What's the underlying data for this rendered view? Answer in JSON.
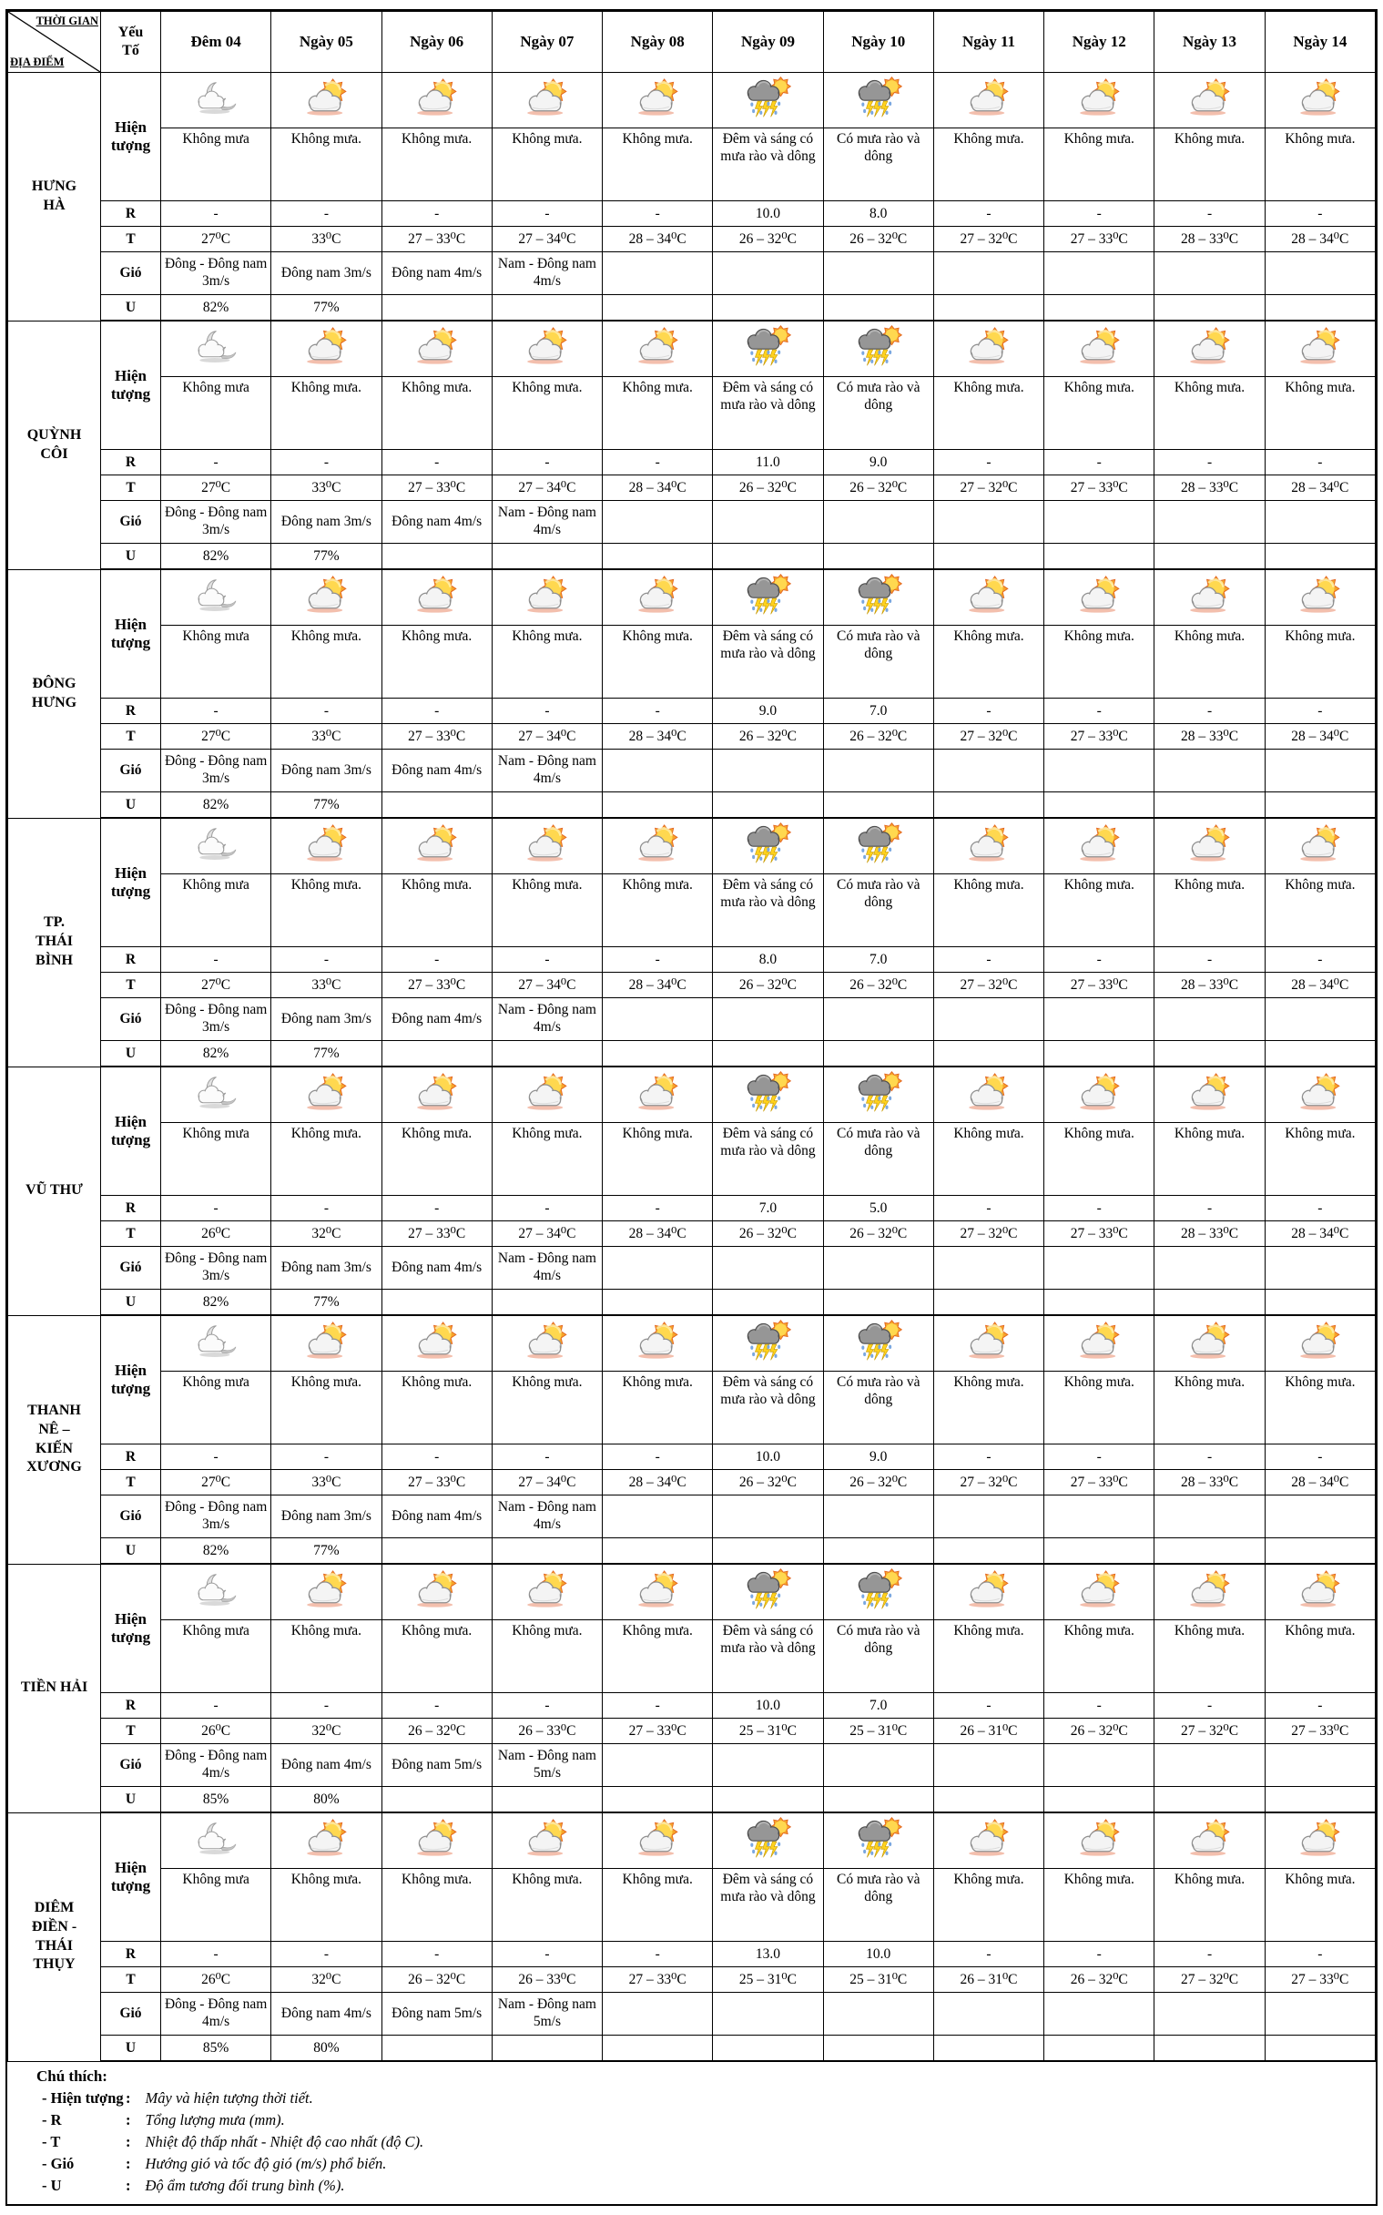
{
  "header": {
    "time_label": "THỜI GIAN",
    "location_label": "ĐỊA ĐIỂM",
    "factor_label": "Yếu\nTố",
    "days": [
      "Đêm 04",
      "Ngày 05",
      "Ngày 06",
      "Ngày 07",
      "Ngày 08",
      "Ngày 09",
      "Ngày 10",
      "Ngày 11",
      "Ngày 12",
      "Ngày 13",
      "Ngày 14"
    ]
  },
  "row_labels": {
    "phenomenon": "Hiện tượng",
    "rain": "R",
    "temperature": "T",
    "wind": "Gió",
    "humidity": "U"
  },
  "shared": {
    "icon_pattern": [
      "moon-cloud",
      "sun-cloud",
      "sun-cloud",
      "sun-cloud",
      "sun-cloud",
      "storm-rain",
      "storm-rain",
      "sun-cloud",
      "sun-cloud",
      "sun-cloud",
      "sun-cloud"
    ],
    "phenomenon_pattern": [
      "Không mưa",
      "Không mưa.",
      "Không mưa.",
      "Không mưa.",
      "Không mưa.",
      "Đêm và sáng có mưa rào và dông",
      "Có mưa rào và dông",
      "Không mưa.",
      "Không mưa.",
      "Không mưa.",
      "Không mưa."
    ]
  },
  "locations": [
    {
      "name": "HƯNG\nHÀ",
      "r": [
        "-",
        "-",
        "-",
        "-",
        "-",
        "10.0",
        "8.0",
        "-",
        "-",
        "-",
        "-"
      ],
      "t": [
        "27⁰C",
        "33⁰C",
        "27 – 33⁰C",
        "27 – 34⁰C",
        "28 – 34⁰C",
        "26 – 32⁰C",
        "26 – 32⁰C",
        "27 – 32⁰C",
        "27 – 33⁰C",
        "28 – 33⁰C",
        "28 – 34⁰C"
      ],
      "wind": [
        "Đông - Đông nam 3m/s",
        "Đông nam 3m/s",
        "Đông nam 4m/s",
        "Nam - Đông nam 4m/s",
        "",
        "",
        "",
        "",
        "",
        "",
        ""
      ],
      "u": [
        "82%",
        "77%",
        "",
        "",
        "",
        "",
        "",
        "",
        "",
        "",
        ""
      ]
    },
    {
      "name": "QUỲNH\nCÔI",
      "r": [
        "-",
        "-",
        "-",
        "-",
        "-",
        "11.0",
        "9.0",
        "-",
        "-",
        "-",
        "-"
      ],
      "t": [
        "27⁰C",
        "33⁰C",
        "27 – 33⁰C",
        "27 – 34⁰C",
        "28 – 34⁰C",
        "26 – 32⁰C",
        "26 – 32⁰C",
        "27 – 32⁰C",
        "27 – 33⁰C",
        "28 – 33⁰C",
        "28 – 34⁰C"
      ],
      "wind": [
        "Đông - Đông nam 3m/s",
        "Đông nam 3m/s",
        "Đông nam 4m/s",
        "Nam - Đông nam 4m/s",
        "",
        "",
        "",
        "",
        "",
        "",
        ""
      ],
      "u": [
        "82%",
        "77%",
        "",
        "",
        "",
        "",
        "",
        "",
        "",
        "",
        ""
      ]
    },
    {
      "name": "ĐÔNG\nHƯNG",
      "r": [
        "-",
        "-",
        "-",
        "-",
        "-",
        "9.0",
        "7.0",
        "-",
        "-",
        "-",
        "-"
      ],
      "t": [
        "27⁰C",
        "33⁰C",
        "27 – 33⁰C",
        "27 – 34⁰C",
        "28 – 34⁰C",
        "26 – 32⁰C",
        "26 – 32⁰C",
        "27 – 32⁰C",
        "27 – 33⁰C",
        "28 – 33⁰C",
        "28 – 34⁰C"
      ],
      "wind": [
        "Đông - Đông nam 3m/s",
        "Đông nam 3m/s",
        "Đông nam 4m/s",
        "Nam - Đông nam 4m/s",
        "",
        "",
        "",
        "",
        "",
        "",
        ""
      ],
      "u": [
        "82%",
        "77%",
        "",
        "",
        "",
        "",
        "",
        "",
        "",
        "",
        ""
      ]
    },
    {
      "name": "TP.\nTHÁI\nBÌNH",
      "r": [
        "-",
        "-",
        "-",
        "-",
        "-",
        "8.0",
        "7.0",
        "-",
        "-",
        "-",
        "-"
      ],
      "t": [
        "27⁰C",
        "33⁰C",
        "27 – 33⁰C",
        "27 – 34⁰C",
        "28 – 34⁰C",
        "26 – 32⁰C",
        "26 – 32⁰C",
        "27 – 32⁰C",
        "27 – 33⁰C",
        "28 – 33⁰C",
        "28 – 34⁰C"
      ],
      "wind": [
        "Đông - Đông nam 3m/s",
        "Đông nam 3m/s",
        "Đông nam 4m/s",
        "Nam - Đông nam 4m/s",
        "",
        "",
        "",
        "",
        "",
        "",
        ""
      ],
      "u": [
        "82%",
        "77%",
        "",
        "",
        "",
        "",
        "",
        "",
        "",
        "",
        ""
      ]
    },
    {
      "name": "VŨ THƯ",
      "r": [
        "-",
        "-",
        "-",
        "-",
        "-",
        "7.0",
        "5.0",
        "-",
        "-",
        "-",
        "-"
      ],
      "t": [
        "26⁰C",
        "32⁰C",
        "27 – 33⁰C",
        "27 – 34⁰C",
        "28 – 34⁰C",
        "26 – 32⁰C",
        "26 – 32⁰C",
        "27 – 32⁰C",
        "27 – 33⁰C",
        "28 – 33⁰C",
        "28 – 34⁰C"
      ],
      "wind": [
        "Đông - Đông nam 3m/s",
        "Đông nam 3m/s",
        "Đông nam 4m/s",
        "Nam - Đông nam 4m/s",
        "",
        "",
        "",
        "",
        "",
        "",
        ""
      ],
      "u": [
        "82%",
        "77%",
        "",
        "",
        "",
        "",
        "",
        "",
        "",
        "",
        ""
      ]
    },
    {
      "name": "THANH\nNÊ –\nKIẾN\nXƯƠNG",
      "r": [
        "-",
        "-",
        "-",
        "-",
        "-",
        "10.0",
        "9.0",
        "-",
        "-",
        "-",
        "-"
      ],
      "t": [
        "27⁰C",
        "33⁰C",
        "27 – 33⁰C",
        "27 – 34⁰C",
        "28 – 34⁰C",
        "26 – 32⁰C",
        "26 – 32⁰C",
        "27 – 32⁰C",
        "27 – 33⁰C",
        "28 – 33⁰C",
        "28 – 34⁰C"
      ],
      "wind": [
        "Đông - Đông nam 3m/s",
        "Đông nam 3m/s",
        "Đông nam 4m/s",
        "Nam - Đông nam 4m/s",
        "",
        "",
        "",
        "",
        "",
        "",
        ""
      ],
      "u": [
        "82%",
        "77%",
        "",
        "",
        "",
        "",
        "",
        "",
        "",
        "",
        ""
      ]
    },
    {
      "name": "TIỀN HẢI",
      "r": [
        "-",
        "-",
        "-",
        "-",
        "-",
        "10.0",
        "7.0",
        "-",
        "-",
        "-",
        "-"
      ],
      "t": [
        "26⁰C",
        "32⁰C",
        "26 – 32⁰C",
        "26 – 33⁰C",
        "27 – 33⁰C",
        "25 – 31⁰C",
        "25 – 31⁰C",
        "26 – 31⁰C",
        "26 – 32⁰C",
        "27 – 32⁰C",
        "27 – 33⁰C"
      ],
      "wind": [
        "Đông - Đông nam 4m/s",
        "Đông nam 4m/s",
        "Đông nam 5m/s",
        "Nam - Đông nam 5m/s",
        "",
        "",
        "",
        "",
        "",
        "",
        ""
      ],
      "u": [
        "85%",
        "80%",
        "",
        "",
        "",
        "",
        "",
        "",
        "",
        "",
        ""
      ]
    },
    {
      "name": "DIÊM\nĐIỀN -\nTHÁI\nTHỤY",
      "r": [
        "-",
        "-",
        "-",
        "-",
        "-",
        "13.0",
        "10.0",
        "-",
        "-",
        "-",
        "-"
      ],
      "t": [
        "26⁰C",
        "32⁰C",
        "26 – 32⁰C",
        "26 – 33⁰C",
        "27 – 33⁰C",
        "25 – 31⁰C",
        "25 – 31⁰C",
        "26 – 31⁰C",
        "26 – 32⁰C",
        "27 – 32⁰C",
        "27 – 33⁰C"
      ],
      "wind": [
        "Đông - Đông nam 4m/s",
        "Đông nam 4m/s",
        "Đông nam 5m/s",
        "Nam - Đông nam 5m/s",
        "",
        "",
        "",
        "",
        "",
        "",
        ""
      ],
      "u": [
        "85%",
        "80%",
        "",
        "",
        "",
        "",
        "",
        "",
        "",
        "",
        ""
      ]
    }
  ],
  "legend": {
    "title": "Chú thích:",
    "items": [
      {
        "term": "- Hiện tượng",
        "colon": ":",
        "desc": "Mây và hiện tượng thời tiết."
      },
      {
        "term": "- R",
        "colon": ":",
        "desc": "Tổng lượng mưa (mm)."
      },
      {
        "term": "- T",
        "colon": ":",
        "desc": "Nhiệt độ thấp nhất - Nhiệt độ cao nhất (độ C)."
      },
      {
        "term": "- Gió",
        "colon": ":",
        "desc": "Hướng gió và tốc độ gió (m/s) phổ biến."
      },
      {
        "term": "- U",
        "colon": ":",
        "desc": "Độ ẩm tương đối trung bình (%)."
      }
    ]
  }
}
